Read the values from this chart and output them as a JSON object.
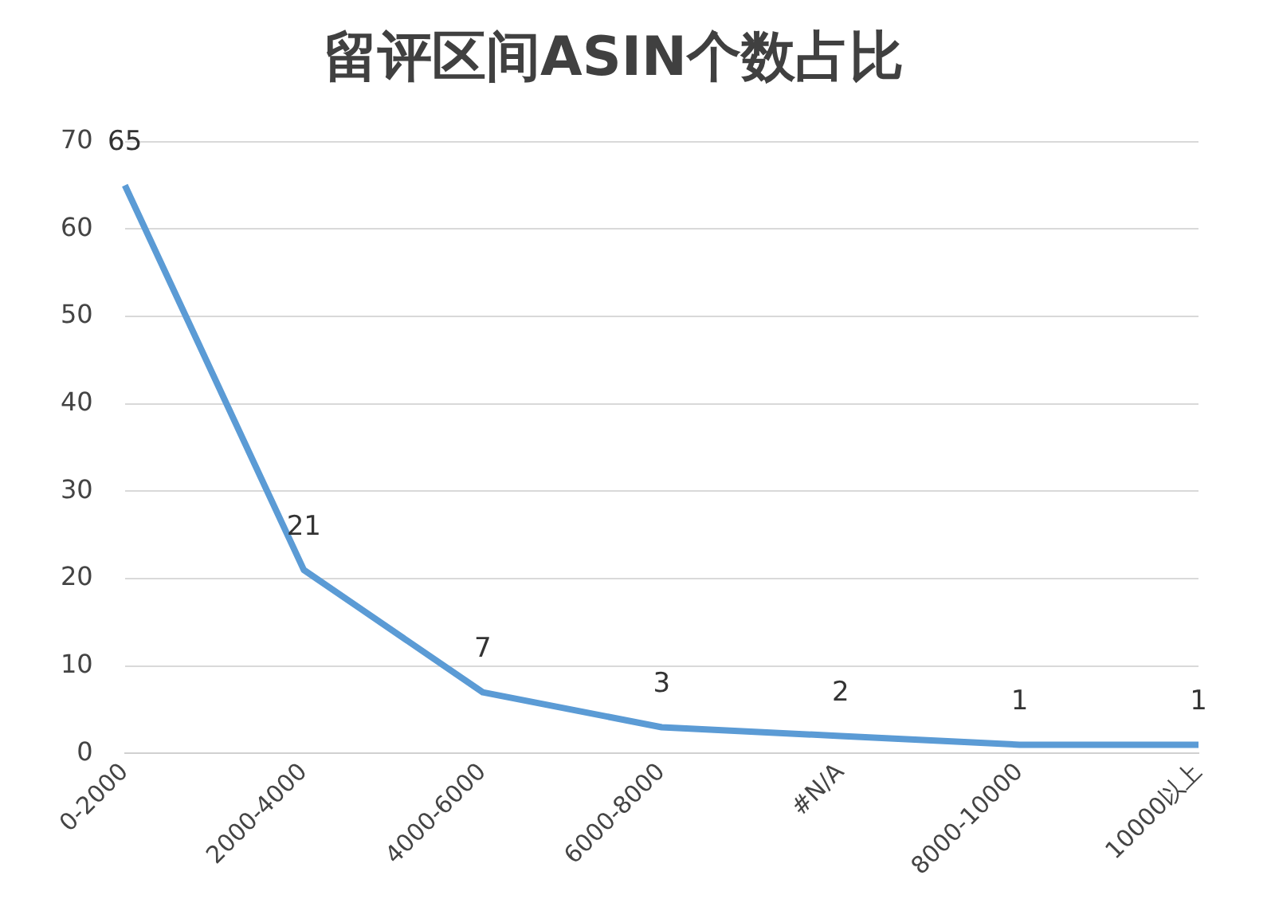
{
  "chart_data": {
    "type": "line",
    "title": "留评区间ASIN个数占比",
    "categories": [
      "0-2000",
      "2000-4000",
      "4000-6000",
      "6000-8000",
      "#N/A",
      "8000-10000",
      "10000以上"
    ],
    "series": [
      {
        "color": "#5b9bd5",
        "values": [
          65,
          21,
          7,
          3,
          2,
          1,
          1
        ]
      }
    ],
    "ylim": [
      0,
      70
    ],
    "yticks": [
      0,
      10,
      20,
      30,
      40,
      50,
      60,
      70
    ],
    "grid": "y",
    "data_labels": true,
    "marker": "none",
    "line_style": "solid",
    "legend": false
  }
}
